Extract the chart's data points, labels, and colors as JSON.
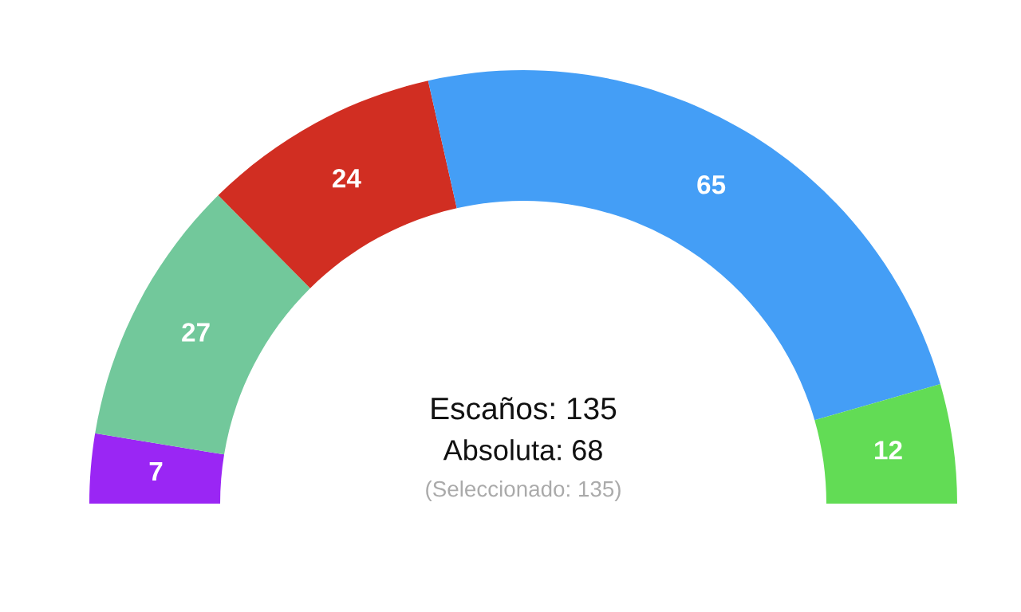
{
  "chart_data": {
    "type": "donut",
    "categories": [
      null,
      null,
      null,
      null,
      null
    ],
    "values": [
      7,
      27,
      24,
      65,
      12
    ],
    "colors": [
      "#9a26f4",
      "#72c89b",
      "#d12e22",
      "#449ef6",
      "#62dc55"
    ],
    "data_labels": true,
    "legend": false,
    "annotations": [
      "Escaños: 135",
      "Absoluta: 68",
      "(Seleccionado: 135)"
    ]
  }
}
